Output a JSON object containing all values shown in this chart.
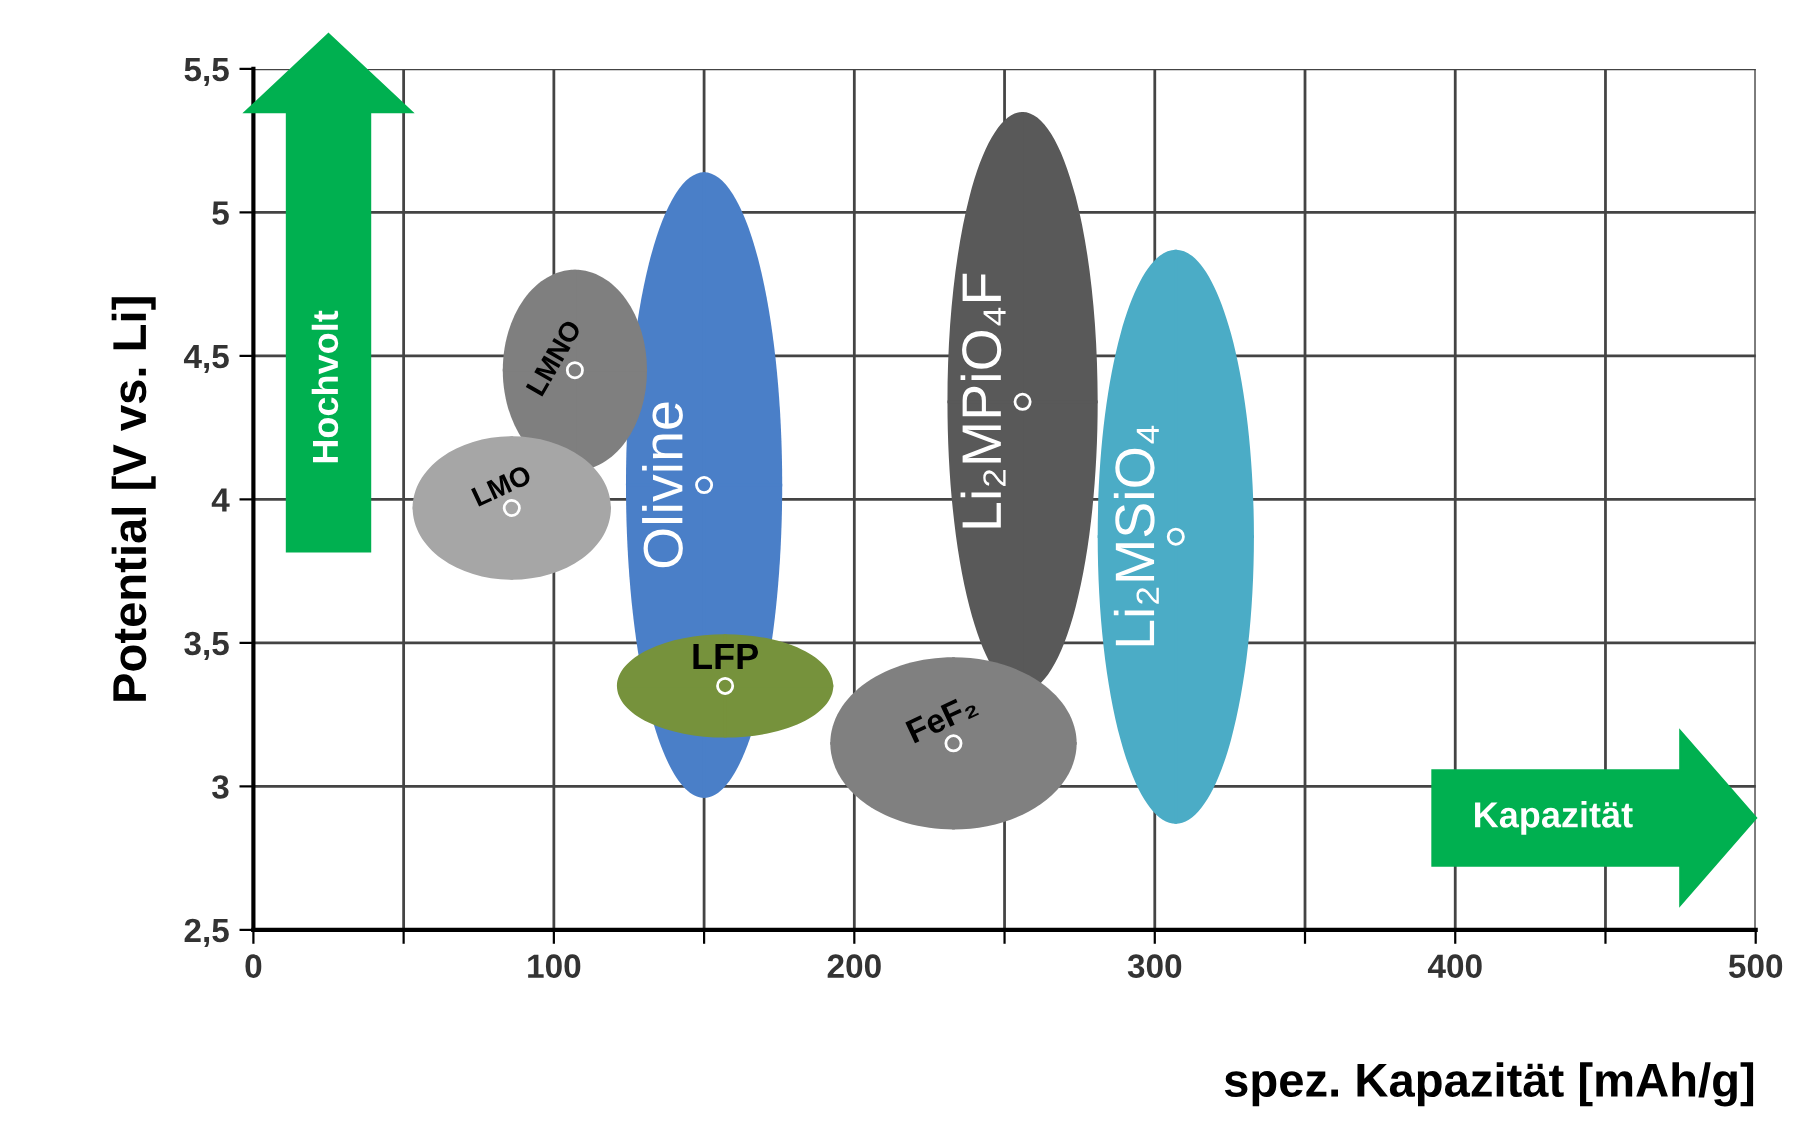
{
  "chart_data": {
    "type": "scatter",
    "xlabel": "spez. Kapazität [mAh/g]",
    "ylabel": "Potential [V vs. Li]",
    "xlim": [
      0,
      500
    ],
    "xticks": [
      0,
      {
        "value": 50,
        "label": null
      },
      100,
      {
        "value": 150,
        "label": null
      },
      200,
      {
        "value": 250,
        "label": null
      },
      300,
      {
        "value": 350,
        "label": null
      },
      400,
      {
        "value": 450,
        "label": null
      },
      500
    ],
    "ylim": [
      2.5,
      5.5
    ],
    "yticks": [
      {
        "value": 2.5,
        "label": "2,5"
      },
      {
        "value": 3,
        "label": "3"
      },
      {
        "value": 3.5,
        "label": "3,5"
      },
      {
        "value": 4,
        "label": "4"
      },
      {
        "value": 4.5,
        "label": "4,5"
      },
      {
        "value": 5,
        "label": "5"
      },
      {
        "value": 5.5,
        "label": "5,5"
      }
    ],
    "grid": true,
    "legend": false,
    "annotations": [
      "Hochvolt",
      "Kapazität"
    ],
    "series": [
      {
        "name": "Olivine",
        "color": "#4a7fc8",
        "x": [
          150
        ],
        "values": [
          4.05
        ],
        "errors": [
          1.09
        ],
        "xerrors": [
          26
        ]
      },
      {
        "name": "LMNO",
        "color": "#7f7f7f",
        "x": [
          107
        ],
        "values": [
          4.45
        ],
        "errors": [
          0.35
        ],
        "xerrors": [
          24
        ]
      },
      {
        "name": "LMO",
        "color": "#a6a6a6",
        "x": [
          86
        ],
        "values": [
          3.97
        ],
        "errors": [
          0.25
        ],
        "xerrors": [
          33
        ]
      },
      {
        "name": "LFP",
        "color": "#76923c",
        "x": [
          157
        ],
        "values": [
          3.35
        ],
        "errors": [
          0.18
        ],
        "xerrors": [
          36
        ]
      },
      {
        "name": "Li₂MPiO₄F",
        "color": "#595959",
        "x": [
          256
        ],
        "values": [
          4.34
        ],
        "errors": [
          1.01
        ],
        "xerrors": [
          25
        ]
      },
      {
        "name": "FeF₂",
        "color": "#808080",
        "x": [
          233
        ],
        "values": [
          3.15
        ],
        "errors": [
          0.3
        ],
        "xerrors": [
          41
        ]
      },
      {
        "name": "Li₂MSiO₄",
        "color": "#4bacc6",
        "x": [
          307
        ],
        "values": [
          3.87
        ],
        "errors": [
          1.0
        ],
        "xerrors": [
          26
        ]
      }
    ]
  }
}
